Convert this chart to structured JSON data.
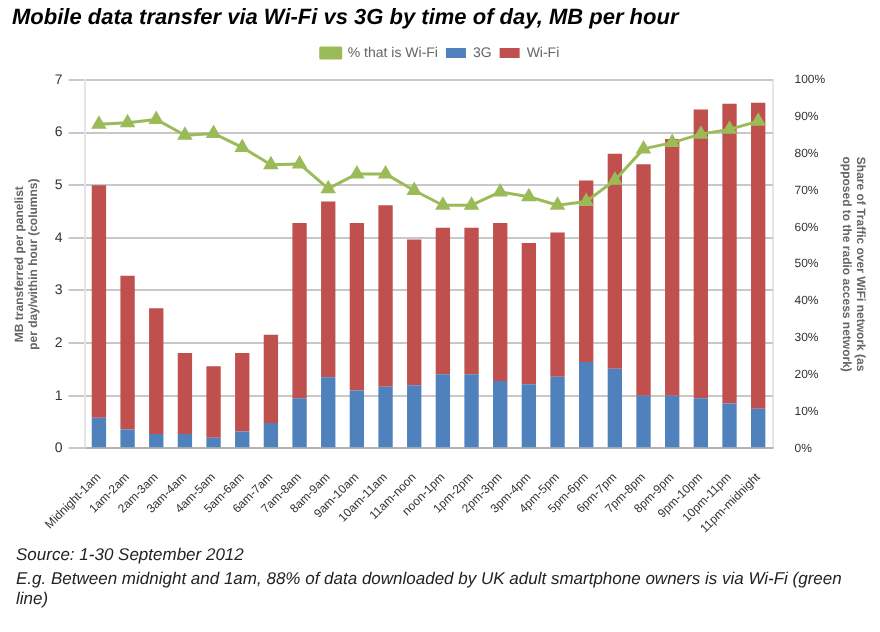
{
  "chart_data": {
    "type": "bar",
    "title": "Mobile data transfer via Wi-Fi vs 3G by time of day, MB per hour",
    "categories": [
      "Midnight-1am",
      "1am-2am",
      "2am-3am",
      "3am-4am",
      "4am-5am",
      "5am-6am",
      "6am-7am",
      "7am-8am",
      "8am-9am",
      "9am-10am",
      "10am-11am",
      "11am-noon",
      "noon-1pm",
      "1pm-2pm",
      "2pm-3pm",
      "3pm-4pm",
      "4pm-5pm",
      "5pm-6pm",
      "6pm-7pm",
      "7pm-8pm",
      "8pm-9pm",
      "9pm-10pm",
      "10pm-11pm",
      "11pm-midnight"
    ],
    "series": [
      {
        "name": "3G",
        "color": "#4f81bd",
        "values": [
          0.58,
          0.36,
          0.27,
          0.27,
          0.2,
          0.32,
          0.48,
          0.95,
          1.35,
          1.1,
          1.17,
          1.2,
          1.41,
          1.41,
          1.28,
          1.22,
          1.36,
          1.64,
          1.51,
          1.0,
          1.0,
          0.95,
          0.85,
          0.75
        ]
      },
      {
        "name": "Wi-Fi",
        "color": "#c0504d",
        "values": [
          4.42,
          2.92,
          2.39,
          1.54,
          1.36,
          1.49,
          1.68,
          3.33,
          3.34,
          3.18,
          3.45,
          2.77,
          2.78,
          2.78,
          3.0,
          2.68,
          2.74,
          3.45,
          4.09,
          4.4,
          4.88,
          5.49,
          5.7,
          5.82
        ]
      },
      {
        "name": "% that is Wi-Fi",
        "type": "line",
        "axis": "y2",
        "color": "#9bbb59",
        "marker": "triangle",
        "values": [
          88,
          88.4,
          89.3,
          85,
          85.5,
          81.7,
          77,
          77.2,
          70.5,
          74.5,
          74.5,
          70,
          66,
          66,
          69.6,
          68.3,
          66,
          67,
          72.8,
          81.3,
          83,
          85.3,
          86.6,
          88.8
        ]
      }
    ],
    "stacked": true,
    "ylabel": "MB transferred per panelist per day/within hour (columns)",
    "y2label": "Share of Traffic over WiFi network (as opposed to the radio access network)",
    "ylim": [
      0,
      7
    ],
    "yticks": [
      0,
      1,
      2,
      3,
      4,
      5,
      6,
      7
    ],
    "y2lim": [
      0,
      100
    ],
    "y2ticks": [
      {
        "value": 0,
        "label": "0%"
      },
      {
        "value": 10,
        "label": "10%"
      },
      {
        "value": 20,
        "label": "20%"
      },
      {
        "value": 30,
        "label": "30%"
      },
      {
        "value": 40,
        "label": "40%"
      },
      {
        "value": 50,
        "label": "50%"
      },
      {
        "value": 60,
        "label": "60%"
      },
      {
        "value": 70,
        "label": "70%"
      },
      {
        "value": 80,
        "label": "80%"
      },
      {
        "value": 90,
        "label": "90%"
      },
      {
        "value": 100,
        "label": "100%"
      }
    ],
    "grid": "y",
    "legend": "top",
    "annotations": [
      "Source: 1-30 September 2012",
      "E.g. Between midnight and 1am, 88% of data downloaded by UK adult smartphone owners is via Wi-Fi (green line)"
    ]
  }
}
